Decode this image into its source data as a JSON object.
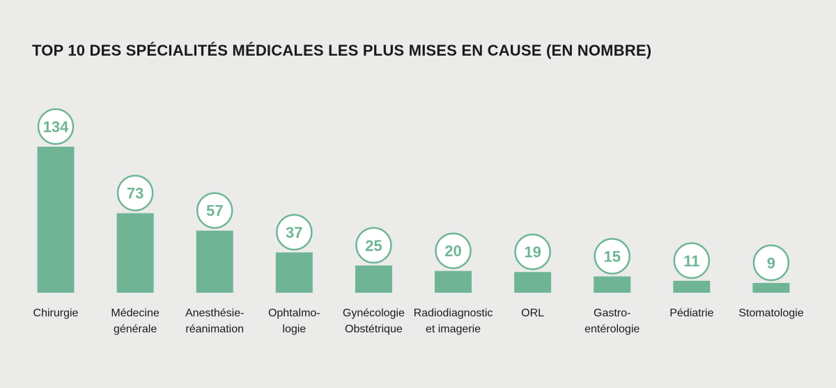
{
  "chart_data": {
    "type": "bar",
    "title": "TOP 10 DES SPÉCIALITÉS MÉDICALES LES PLUS MISES EN CAUSE (EN NOMBRE)",
    "categories": [
      [
        "Chirurgie"
      ],
      [
        "Médecine",
        "générale"
      ],
      [
        "Anesthésie-",
        "réanimation"
      ],
      [
        "Ophtalmo-",
        "logie"
      ],
      [
        "Gynécologie",
        "Obstétrique"
      ],
      [
        "Radiodiagnostic",
        "et imagerie"
      ],
      [
        "ORL"
      ],
      [
        "Gastro-",
        "entérologie"
      ],
      [
        "Pédiatrie"
      ],
      [
        "Stomatologie"
      ]
    ],
    "values": [
      134,
      73,
      57,
      37,
      25,
      20,
      19,
      15,
      11,
      9
    ],
    "ylim": [
      0,
      134
    ],
    "grid": false,
    "legend": "none",
    "colors": {
      "bar": "#6fb595",
      "circle_stroke": "#6fb595",
      "circle_fill": "#ffffff",
      "value_text": "#6fb595",
      "background": "#ebebea"
    }
  }
}
